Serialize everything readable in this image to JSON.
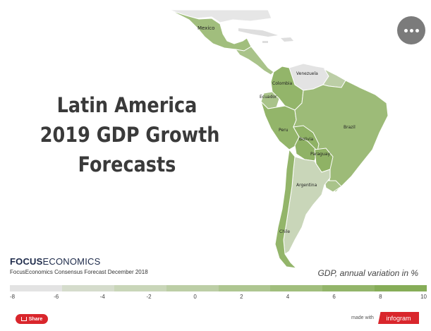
{
  "title_lines": [
    "Latin America",
    "2019 GDP Growth",
    "Forecasts"
  ],
  "menu": {
    "icon": "more-dots-icon"
  },
  "brand": {
    "bold": "FOCUS",
    "light": "ECONOMICS"
  },
  "source": "FocusEconomics Consensus Forecast December 2018",
  "legend": {
    "title": "GDP, annual variation in %",
    "ticks": [
      "-8",
      "-6",
      "-4",
      "-2",
      "0",
      "2",
      "4",
      "6",
      "8",
      "10"
    ],
    "colors": [
      "#e3e3e3",
      "#d5dccc",
      "#c9d6b9",
      "#bccea6",
      "#aec691",
      "#a1be7d",
      "#93b56a",
      "#86ad58"
    ]
  },
  "countries": [
    {
      "name": "Mexico",
      "label": "Mexico",
      "color": "#a1be7d"
    },
    {
      "name": "Venezuela",
      "label": "Venezuela",
      "color": "#e3e3e3"
    },
    {
      "name": "Colombia",
      "label": "Colombia",
      "color": "#93b56a"
    },
    {
      "name": "Ecuador",
      "label": "Ecuador",
      "color": "#a9c38a"
    },
    {
      "name": "Peru",
      "label": "Peru",
      "color": "#93b56a"
    },
    {
      "name": "Brazil",
      "label": "Brazil",
      "color": "#9dbb78"
    },
    {
      "name": "Bolivia",
      "label": "Bolivia",
      "color": "#8fb265"
    },
    {
      "name": "Paraguay",
      "label": "Paraguay",
      "color": "#8fb265"
    },
    {
      "name": "Argentina",
      "label": "Argentina",
      "color": "#c9d6b9"
    },
    {
      "name": "Chile",
      "label": "Chile",
      "color": "#93b56a"
    }
  ],
  "share": {
    "label": "Share"
  },
  "footer": {
    "made_with": "made with",
    "infogram": "infogram"
  }
}
